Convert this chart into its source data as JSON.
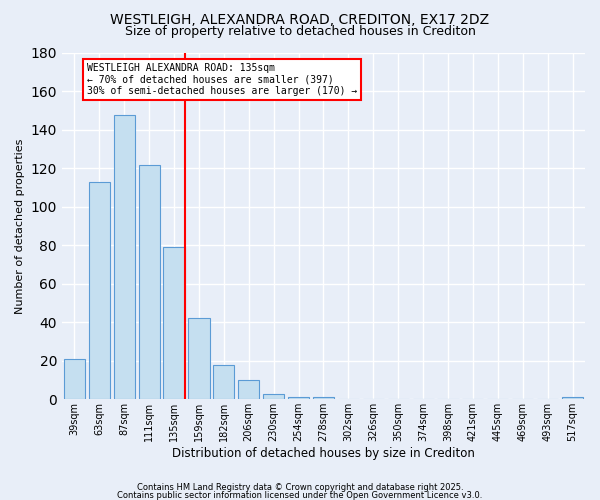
{
  "title": "WESTLEIGH, ALEXANDRA ROAD, CREDITON, EX17 2DZ",
  "subtitle": "Size of property relative to detached houses in Crediton",
  "xlabel": "Distribution of detached houses by size in Crediton",
  "ylabel": "Number of detached properties",
  "bar_color": "#c5dff0",
  "bar_edge_color": "#5b9bd5",
  "background_color": "#e8eef8",
  "categories": [
    "39sqm",
    "63sqm",
    "87sqm",
    "111sqm",
    "135sqm",
    "159sqm",
    "182sqm",
    "206sqm",
    "230sqm",
    "254sqm",
    "278sqm",
    "302sqm",
    "326sqm",
    "350sqm",
    "374sqm",
    "398sqm",
    "421sqm",
    "445sqm",
    "469sqm",
    "493sqm",
    "517sqm"
  ],
  "values": [
    21,
    113,
    148,
    122,
    79,
    42,
    18,
    10,
    3,
    1,
    1,
    0,
    0,
    0,
    0,
    0,
    0,
    0,
    0,
    0,
    1
  ],
  "red_line_index": 4,
  "annotation_text": "WESTLEIGH ALEXANDRA ROAD: 135sqm\n← 70% of detached houses are smaller (397)\n30% of semi-detached houses are larger (170) →",
  "ylim": [
    0,
    180
  ],
  "yticks": [
    0,
    20,
    40,
    60,
    80,
    100,
    120,
    140,
    160,
    180
  ],
  "footer_line1": "Contains HM Land Registry data © Crown copyright and database right 2025.",
  "footer_line2": "Contains public sector information licensed under the Open Government Licence v3.0."
}
